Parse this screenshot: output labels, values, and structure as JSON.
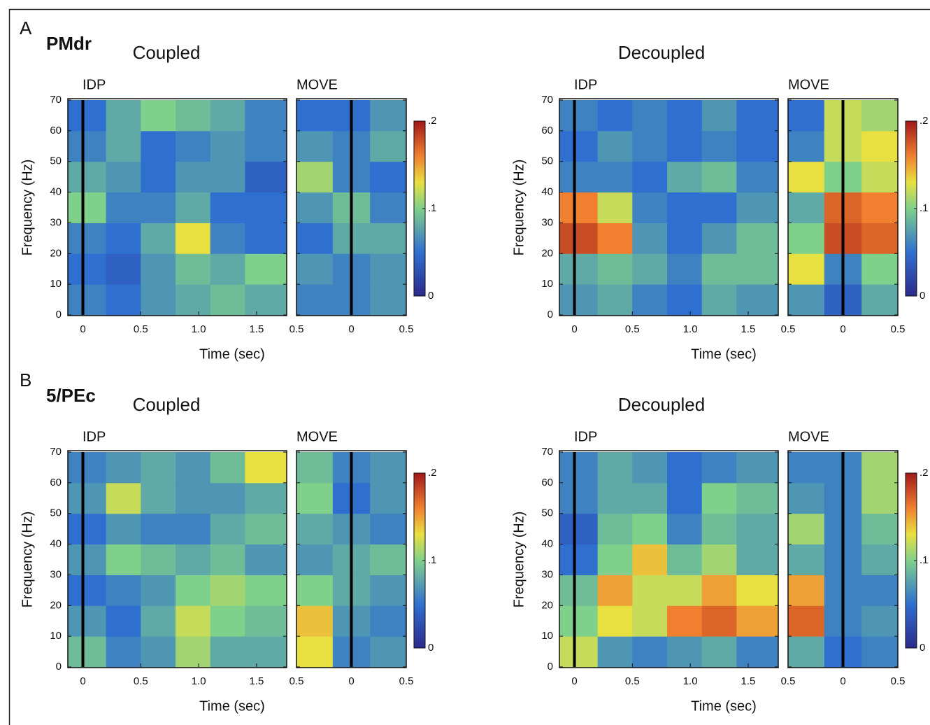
{
  "chart_data": [
    {
      "type": "heatmap",
      "panel": "A",
      "area": "PMdr",
      "title": "Coupled",
      "ylabel": "Frequency (Hz)",
      "xlabel": "Time (sec)",
      "ylim": [
        0,
        70
      ],
      "yticks": [
        0,
        10,
        20,
        30,
        40,
        50,
        60,
        70
      ],
      "colorbar": {
        "lim": [
          0,
          0.2
        ],
        "ticks": [
          0,
          {
            "value": 0.1,
            "label": ".1"
          },
          {
            "value": 0.2,
            "label": ".2"
          }
        ]
      },
      "subplots": [
        {
          "name": "IDP",
          "xlim": [
            -0.13,
            1.76
          ],
          "xticks": [
            0,
            0.5,
            {
              "value": 1,
              "label": "1.0"
            },
            1.5
          ],
          "event_x": 0,
          "xbins": [
            -0.13,
            0.2,
            0.5,
            0.8,
            1.1,
            1.4,
            1.76
          ],
          "ybins": [
            0,
            10,
            20,
            30,
            40,
            50,
            60,
            70
          ],
          "values": [
            [
              0.06,
              0.05,
              0.07,
              0.08,
              0.09,
              0.08
            ],
            [
              0.05,
              0.04,
              0.07,
              0.09,
              0.08,
              0.1
            ],
            [
              0.06,
              0.05,
              0.08,
              0.13,
              0.06,
              0.05
            ],
            [
              0.1,
              0.06,
              0.06,
              0.08,
              0.05,
              0.05
            ],
            [
              0.08,
              0.07,
              0.05,
              0.07,
              0.07,
              0.04
            ],
            [
              0.06,
              0.08,
              0.05,
              0.06,
              0.07,
              0.06
            ],
            [
              0.05,
              0.08,
              0.1,
              0.09,
              0.08,
              0.06
            ]
          ]
        },
        {
          "name": "MOVE",
          "xlim": [
            -0.5,
            0.5
          ],
          "xticks": [
            {
              "value": -0.5,
              "label": "0.5"
            },
            0,
            0.5
          ],
          "event_x": 0,
          "xbins": [
            -0.5,
            -0.17,
            0.17,
            0.5
          ],
          "ybins": [
            0,
            10,
            20,
            30,
            40,
            50,
            60,
            70
          ],
          "values": [
            [
              0.06,
              0.06,
              0.07
            ],
            [
              0.07,
              0.06,
              0.07
            ],
            [
              0.05,
              0.08,
              0.08
            ],
            [
              0.07,
              0.09,
              0.06
            ],
            [
              0.11,
              0.06,
              0.05
            ],
            [
              0.07,
              0.06,
              0.08
            ],
            [
              0.05,
              0.05,
              0.07
            ]
          ]
        }
      ]
    },
    {
      "type": "heatmap",
      "title": "Decoupled",
      "ylabel": "Frequency (Hz)",
      "xlabel": "Time (sec)",
      "ylim": [
        0,
        70
      ],
      "yticks": [
        0,
        10,
        20,
        30,
        40,
        50,
        60,
        70
      ],
      "colorbar": {
        "lim": [
          0,
          0.2
        ],
        "ticks": [
          0,
          {
            "value": 0.1,
            "label": ".1"
          },
          {
            "value": 0.2,
            "label": ".2"
          }
        ]
      },
      "subplots": [
        {
          "name": "IDP",
          "xlim": [
            -0.13,
            1.76
          ],
          "xticks": [
            0,
            0.5,
            {
              "value": 1,
              "label": "1.0"
            },
            1.5
          ],
          "event_x": 0,
          "xbins": [
            -0.13,
            0.2,
            0.5,
            0.8,
            1.1,
            1.4,
            1.76
          ],
          "ybins": [
            0,
            10,
            20,
            30,
            40,
            50,
            60,
            70
          ],
          "values": [
            [
              0.07,
              0.08,
              0.06,
              0.05,
              0.08,
              0.07
            ],
            [
              0.08,
              0.09,
              0.08,
              0.06,
              0.09,
              0.09
            ],
            [
              0.18,
              0.16,
              0.07,
              0.05,
              0.07,
              0.09
            ],
            [
              0.16,
              0.12,
              0.06,
              0.05,
              0.05,
              0.07
            ],
            [
              0.06,
              0.06,
              0.05,
              0.08,
              0.09,
              0.06
            ],
            [
              0.05,
              0.07,
              0.06,
              0.05,
              0.06,
              0.05
            ],
            [
              0.06,
              0.05,
              0.06,
              0.05,
              0.07,
              0.05
            ]
          ]
        },
        {
          "name": "MOVE",
          "xlim": [
            -0.5,
            0.5
          ],
          "xticks": [
            {
              "value": -0.5,
              "label": "0.5"
            },
            0,
            0.5
          ],
          "event_x": 0,
          "xbins": [
            -0.5,
            -0.17,
            0.17,
            0.5
          ],
          "ybins": [
            0,
            10,
            20,
            30,
            40,
            50,
            60,
            70
          ],
          "values": [
            [
              0.07,
              0.04,
              0.08
            ],
            [
              0.13,
              0.06,
              0.1
            ],
            [
              0.1,
              0.18,
              0.17
            ],
            [
              0.08,
              0.17,
              0.16
            ],
            [
              0.13,
              0.1,
              0.12
            ],
            [
              0.06,
              0.12,
              0.13
            ],
            [
              0.05,
              0.12,
              0.11
            ]
          ]
        }
      ]
    },
    {
      "type": "heatmap",
      "panel": "B",
      "area": "5/PEc",
      "title": "Coupled",
      "ylabel": "Frequency (Hz)",
      "xlabel": "Time (sec)",
      "ylim": [
        0,
        70
      ],
      "yticks": [
        0,
        10,
        20,
        30,
        40,
        50,
        60,
        70
      ],
      "colorbar": {
        "lim": [
          0,
          0.2
        ],
        "ticks": [
          0,
          {
            "value": 0.1,
            "label": ".1"
          },
          {
            "value": 0.2,
            "label": ".2"
          }
        ]
      },
      "subplots": [
        {
          "name": "IDP",
          "xlim": [
            -0.13,
            1.76
          ],
          "xticks": [
            0,
            0.5,
            {
              "value": 1,
              "label": "1.0"
            },
            1.5
          ],
          "event_x": 0,
          "xbins": [
            -0.13,
            0.2,
            0.5,
            0.8,
            1.1,
            1.4,
            1.76
          ],
          "ybins": [
            0,
            10,
            20,
            30,
            40,
            50,
            60,
            70
          ],
          "values": [
            [
              0.09,
              0.06,
              0.07,
              0.11,
              0.08,
              0.08
            ],
            [
              0.07,
              0.05,
              0.08,
              0.12,
              0.1,
              0.09
            ],
            [
              0.05,
              0.06,
              0.07,
              0.1,
              0.11,
              0.1
            ],
            [
              0.07,
              0.1,
              0.09,
              0.08,
              0.09,
              0.07
            ],
            [
              0.05,
              0.07,
              0.06,
              0.06,
              0.08,
              0.09
            ],
            [
              0.07,
              0.12,
              0.08,
              0.07,
              0.07,
              0.08
            ],
            [
              0.06,
              0.07,
              0.08,
              0.07,
              0.09,
              0.13
            ]
          ]
        },
        {
          "name": "MOVE",
          "xlim": [
            -0.5,
            0.5
          ],
          "xticks": [
            {
              "value": -0.5,
              "label": "0.5"
            },
            0,
            0.5
          ],
          "event_x": 0,
          "xbins": [
            -0.5,
            -0.17,
            0.17,
            0.5
          ],
          "ybins": [
            0,
            10,
            20,
            30,
            40,
            50,
            60,
            70
          ],
          "values": [
            [
              0.13,
              0.06,
              0.07
            ],
            [
              0.14,
              0.07,
              0.06
            ],
            [
              0.1,
              0.08,
              0.07
            ],
            [
              0.07,
              0.08,
              0.09
            ],
            [
              0.08,
              0.07,
              0.06
            ],
            [
              0.1,
              0.05,
              0.07
            ],
            [
              0.09,
              0.06,
              0.07
            ]
          ]
        }
      ]
    },
    {
      "type": "heatmap",
      "title": "Decoupled",
      "ylabel": "Frequency (Hz)",
      "xlabel": "Time (sec)",
      "ylim": [
        0,
        70
      ],
      "yticks": [
        0,
        10,
        20,
        30,
        40,
        50,
        60,
        70
      ],
      "colorbar": {
        "lim": [
          0,
          0.2
        ],
        "ticks": [
          0,
          {
            "value": 0.1,
            "label": ".1"
          },
          {
            "value": 0.2,
            "label": ".2"
          }
        ]
      },
      "subplots": [
        {
          "name": "IDP",
          "xlim": [
            -0.13,
            1.76
          ],
          "xticks": [
            0,
            0.5,
            {
              "value": 1,
              "label": "1.0"
            },
            1.5
          ],
          "event_x": 0,
          "xbins": [
            -0.13,
            0.2,
            0.5,
            0.8,
            1.1,
            1.4,
            1.76
          ],
          "ybins": [
            0,
            10,
            20,
            30,
            40,
            50,
            60,
            70
          ],
          "values": [
            [
              0.12,
              0.07,
              0.06,
              0.07,
              0.08,
              0.06
            ],
            [
              0.1,
              0.13,
              0.12,
              0.16,
              0.17,
              0.15
            ],
            [
              0.09,
              0.15,
              0.12,
              0.12,
              0.15,
              0.13
            ],
            [
              0.05,
              0.1,
              0.14,
              0.09,
              0.11,
              0.08
            ],
            [
              0.04,
              0.09,
              0.1,
              0.06,
              0.09,
              0.08
            ],
            [
              0.06,
              0.08,
              0.08,
              0.05,
              0.1,
              0.09
            ],
            [
              0.06,
              0.08,
              0.07,
              0.05,
              0.06,
              0.07
            ]
          ]
        },
        {
          "name": "MOVE",
          "xlim": [
            -0.5,
            0.5
          ],
          "xticks": [
            {
              "value": -0.5,
              "label": "0.5"
            },
            0,
            0.5
          ],
          "event_x": 0,
          "xbins": [
            -0.5,
            -0.17,
            0.17,
            0.5
          ],
          "ybins": [
            0,
            10,
            20,
            30,
            40,
            50,
            60,
            70
          ],
          "values": [
            [
              0.08,
              0.05,
              0.06
            ],
            [
              0.17,
              0.06,
              0.07
            ],
            [
              0.15,
              0.06,
              0.06
            ],
            [
              0.08,
              0.06,
              0.08
            ],
            [
              0.11,
              0.06,
              0.09
            ],
            [
              0.07,
              0.06,
              0.11
            ],
            [
              0.06,
              0.06,
              0.11
            ]
          ]
        }
      ]
    }
  ]
}
